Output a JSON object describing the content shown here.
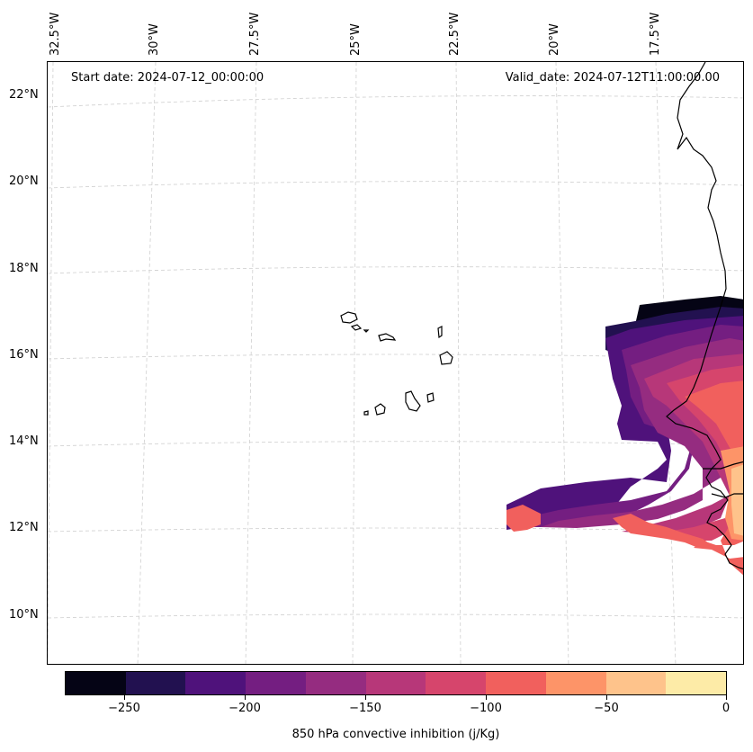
{
  "map": {
    "start_date": "Start date: 2024-07-12_00:00:00",
    "valid_date": "Valid_date: 2024-07-12T11:00:00.00",
    "lon_labels": [
      "32.5°W",
      "30°W",
      "27.5°W",
      "25°W",
      "22.5°W",
      "20°W",
      "17.5°W"
    ],
    "lat_labels": [
      "22°N",
      "20°N",
      "18°N",
      "16°N",
      "14°N",
      "12°N",
      "10°N"
    ],
    "field": "850 hPa convective inhibition",
    "land_outline_color": "#000000"
  },
  "colorbar": {
    "title": "850 hPa convective inhibition (j/Kg)",
    "tick_labels": [
      "−250",
      "−200",
      "−150",
      "−100",
      "−50",
      "0"
    ],
    "colors": [
      "#050415",
      "#221150",
      "#4f127b",
      "#741e81",
      "#952c80",
      "#b73779",
      "#d6456c",
      "#f1605d",
      "#fd9468",
      "#fec38b",
      "#fdeba7"
    ]
  }
}
